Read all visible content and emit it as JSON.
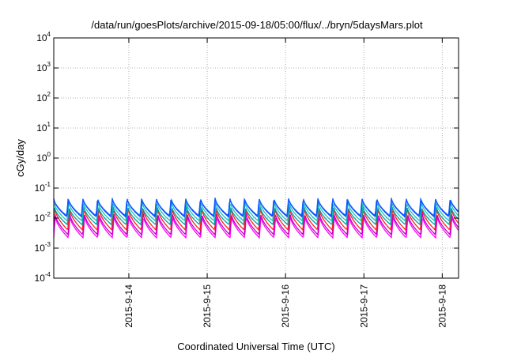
{
  "chart_data": {
    "type": "line",
    "title": "/data/run/goesPlots/archive/2015-09-18/05:00/flux/../bryn/5daysMars.plot",
    "xlabel": "Coordinated Universal Time (UTC)",
    "ylabel": "cGy/day",
    "y_scale": "log",
    "ylim": [
      0.0001,
      10000
    ],
    "y_ticks": [
      {
        "base": "10",
        "exp": "-4",
        "value": 0.0001
      },
      {
        "base": "10",
        "exp": "-3",
        "value": 0.001
      },
      {
        "base": "10",
        "exp": "-2",
        "value": 0.01
      },
      {
        "base": "10",
        "exp": "-1",
        "value": 0.1
      },
      {
        "base": "10",
        "exp": "0",
        "value": 1
      },
      {
        "base": "10",
        "exp": "1",
        "value": 10
      },
      {
        "base": "10",
        "exp": "2",
        "value": 100
      },
      {
        "base": "10",
        "exp": "3",
        "value": 1000
      },
      {
        "base": "10",
        "exp": "4",
        "value": 10000
      }
    ],
    "x_range": [
      "2015-09-13 01:00",
      "2015-09-18 05:00"
    ],
    "x_ticks": [
      {
        "label": "2015-9-14",
        "value": "2015-09-14"
      },
      {
        "label": "2015-9-15",
        "value": "2015-09-15"
      },
      {
        "label": "2015-9-16",
        "value": "2015-09-16"
      },
      {
        "label": "2015-9-17",
        "value": "2015-09-17"
      },
      {
        "label": "2015-9-18",
        "value": "2015-09-18"
      }
    ],
    "grid": true,
    "oscillation_period_hours": 4.5,
    "series": [
      {
        "color": "#ff00ff",
        "peak": 0.012,
        "trough": 0.0022
      },
      {
        "color": "#c000c0",
        "peak": 0.015,
        "trough": 0.0028
      },
      {
        "color": "#ff2020",
        "peak": 0.022,
        "trough": 0.004
      },
      {
        "color": "#00a0a0",
        "peak": 0.025,
        "trough": 0.006
      },
      {
        "color": "#20c0c0",
        "peak": 0.035,
        "trough": 0.008
      },
      {
        "color": "#0040ff",
        "peak": 0.045,
        "trough": 0.011
      },
      {
        "color": "#1060ff",
        "peak": 0.048,
        "trough": 0.012
      }
    ]
  }
}
